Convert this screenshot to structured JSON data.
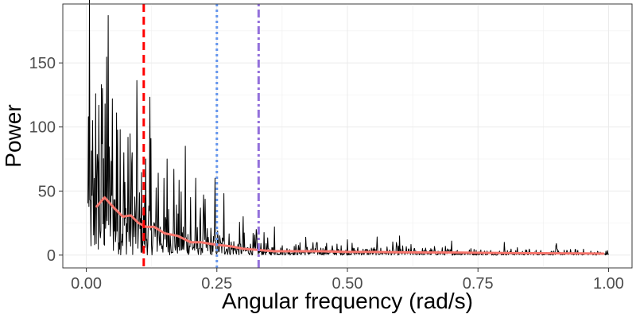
{
  "chart_data": {
    "type": "line",
    "title": "",
    "xlabel": "Angular frequency (rad/s)",
    "ylabel": "Power",
    "xlim": [
      -0.045,
      1.045
    ],
    "ylim": [
      -10,
      196
    ],
    "grid": true,
    "legend": "none",
    "x_ticks": [
      {
        "value": 0.0,
        "label": "0.00"
      },
      {
        "value": 0.25,
        "label": "0.25"
      },
      {
        "value": 0.5,
        "label": "0.50"
      },
      {
        "value": 0.75,
        "label": "0.75"
      },
      {
        "value": 1.0,
        "label": "1.00"
      }
    ],
    "y_ticks": [
      {
        "value": 0,
        "label": "0"
      },
      {
        "value": 50,
        "label": "50"
      },
      {
        "value": 100,
        "label": "100"
      },
      {
        "value": 150,
        "label": "150"
      }
    ],
    "periodogram": {
      "color": "#000000",
      "x_range": [
        0.003,
        1.0
      ],
      "points": 1000,
      "peaks": [
        {
          "x": 0.004,
          "y": 108
        },
        {
          "x": 0.012,
          "y": 105
        },
        {
          "x": 0.018,
          "y": 126
        },
        {
          "x": 0.024,
          "y": 117
        },
        {
          "x": 0.029,
          "y": 133
        },
        {
          "x": 0.031,
          "y": 130
        },
        {
          "x": 0.036,
          "y": 118
        },
        {
          "x": 0.042,
          "y": 187
        },
        {
          "x": 0.05,
          "y": 122
        },
        {
          "x": 0.058,
          "y": 111
        },
        {
          "x": 0.065,
          "y": 98
        },
        {
          "x": 0.072,
          "y": 80
        },
        {
          "x": 0.08,
          "y": 92
        },
        {
          "x": 0.088,
          "y": 80
        },
        {
          "x": 0.098,
          "y": 84
        },
        {
          "x": 0.114,
          "y": 75
        },
        {
          "x": 0.124,
          "y": 91
        },
        {
          "x": 0.138,
          "y": 64
        },
        {
          "x": 0.155,
          "y": 75
        },
        {
          "x": 0.168,
          "y": 67
        },
        {
          "x": 0.19,
          "y": 85
        },
        {
          "x": 0.2,
          "y": 45
        },
        {
          "x": 0.21,
          "y": 60
        },
        {
          "x": 0.225,
          "y": 47
        },
        {
          "x": 0.247,
          "y": 60
        },
        {
          "x": 0.263,
          "y": 48
        },
        {
          "x": 0.3,
          "y": 30
        },
        {
          "x": 0.325,
          "y": 20
        },
        {
          "x": 0.36,
          "y": 22
        },
        {
          "x": 0.42,
          "y": 14
        },
        {
          "x": 0.5,
          "y": 12
        },
        {
          "x": 0.6,
          "y": 15
        },
        {
          "x": 0.7,
          "y": 11
        },
        {
          "x": 0.8,
          "y": 10
        },
        {
          "x": 0.9,
          "y": 9
        }
      ]
    },
    "smoothed": {
      "color": "#f8766d",
      "x": [
        0.02,
        0.035,
        0.055,
        0.07,
        0.085,
        0.1,
        0.115,
        0.13,
        0.15,
        0.175,
        0.2,
        0.22,
        0.25,
        0.275,
        0.3,
        0.33,
        0.36,
        0.4,
        0.45,
        0.5,
        0.55,
        0.6,
        0.65,
        0.7,
        0.75,
        0.8,
        0.85,
        0.9,
        0.95,
        0.99
      ],
      "y": [
        38,
        45,
        36,
        30,
        31,
        25,
        22,
        22,
        17,
        15,
        10,
        10,
        8,
        7,
        5,
        4,
        3,
        3,
        3,
        2.5,
        2.5,
        2.2,
        2,
        2,
        1.8,
        1.6,
        1.5,
        1.4,
        1.3,
        1.2
      ]
    },
    "reference_lines": [
      {
        "x": 0.11,
        "color": "#ff0000",
        "style": "dashed"
      },
      {
        "x": 0.25,
        "color": "#6495ed",
        "style": "dotted"
      },
      {
        "x": 0.33,
        "color": "#9370db",
        "style": "dotdash"
      }
    ]
  }
}
